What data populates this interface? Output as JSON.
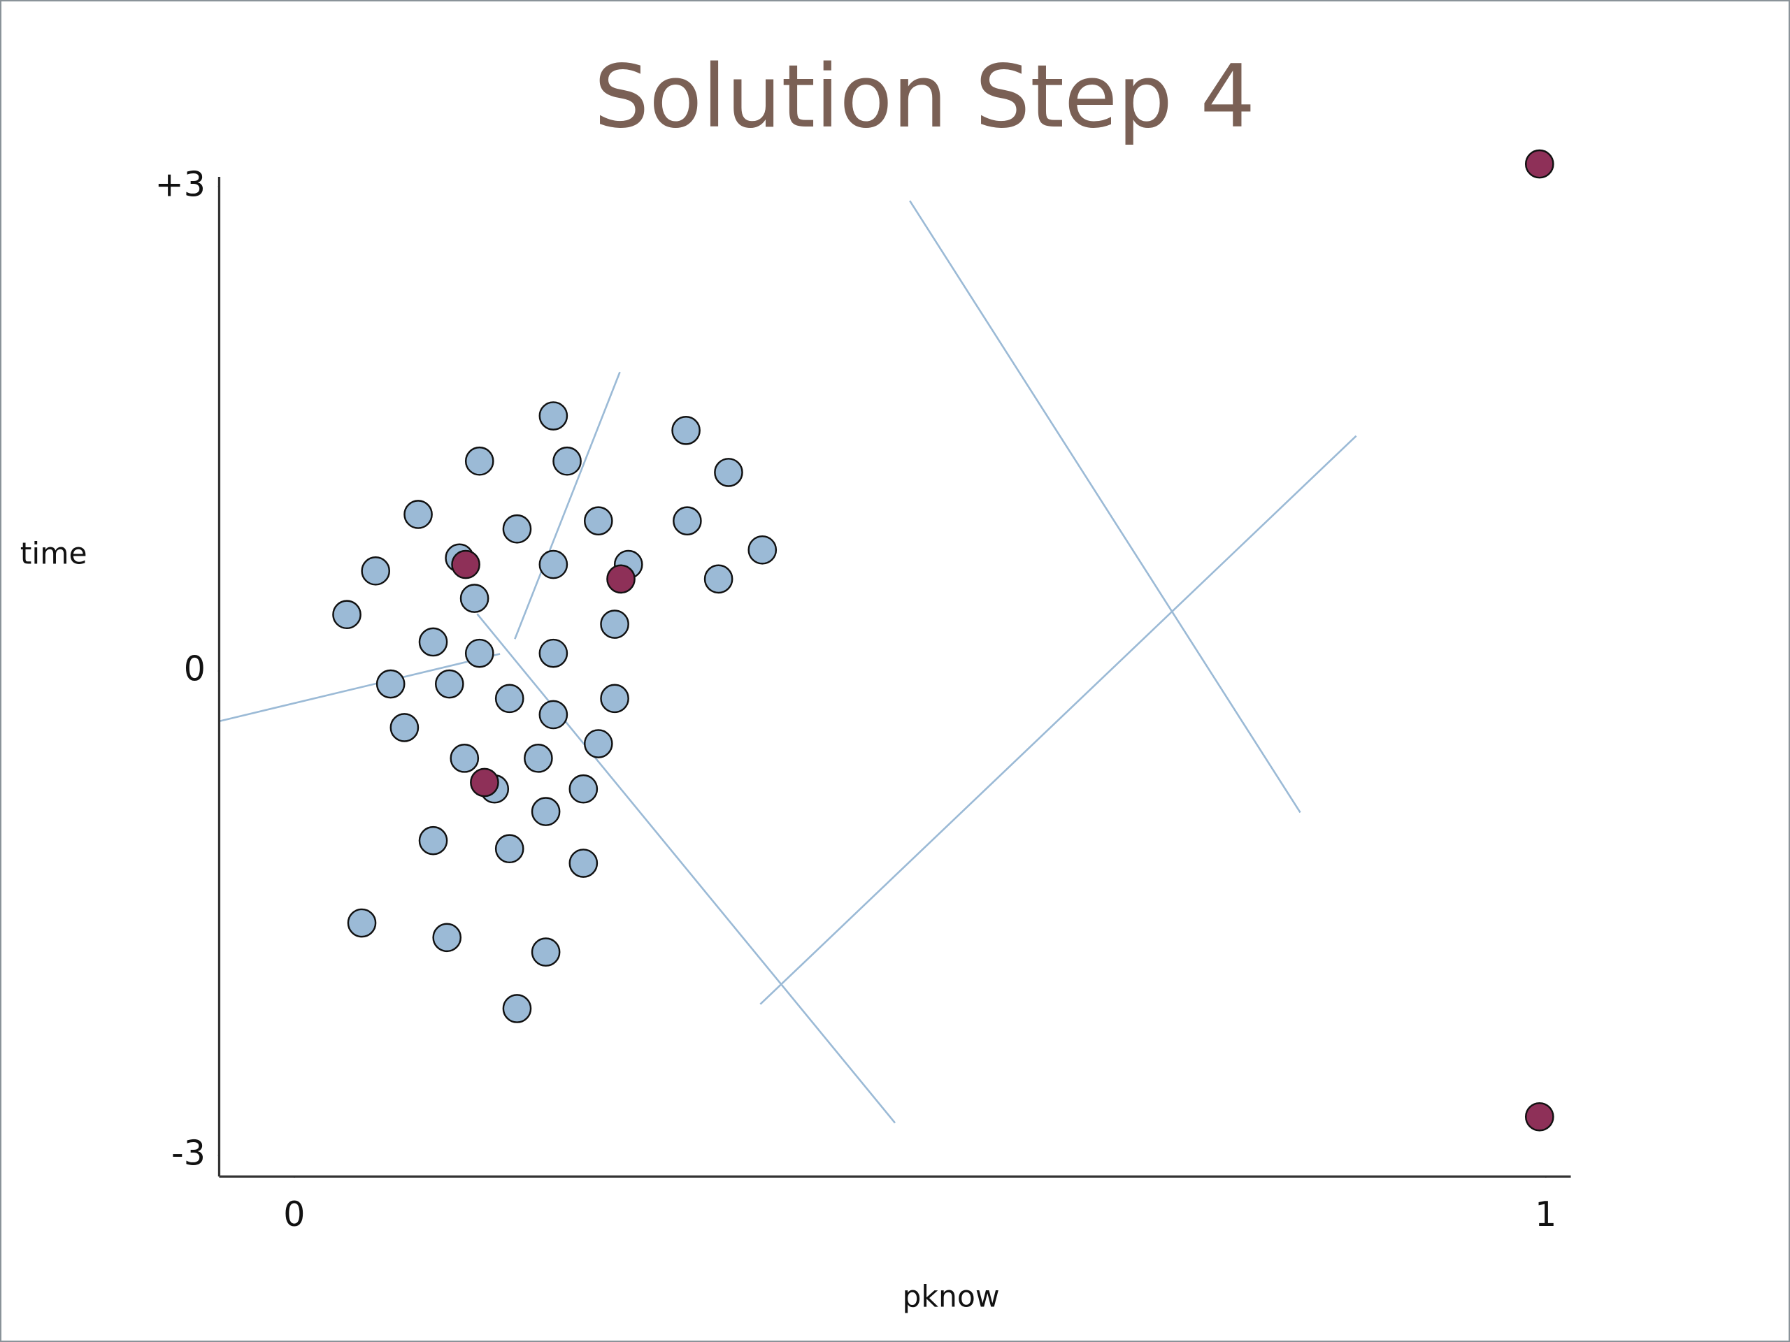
{
  "chart_data": {
    "type": "scatter",
    "title": "Solution Step 4",
    "x_label": "pknow",
    "y_label": "time",
    "xlim": [
      -0.06,
      1.02
    ],
    "ylim": [
      -3.13,
      3.06
    ],
    "xticks": [
      0,
      1
    ],
    "yticks": [
      {
        "value": 3,
        "label": "+3"
      },
      0,
      -3
    ],
    "series": [
      {
        "color": "#9bbad6",
        "x": [
          0.207,
          0.313,
          0.148,
          0.218,
          0.347,
          0.099,
          0.178,
          0.243,
          0.314,
          0.374,
          0.065,
          0.132,
          0.207,
          0.267,
          0.339,
          0.144,
          0.042,
          0.256,
          0.111,
          0.148,
          0.207,
          0.077,
          0.124,
          0.172,
          0.207,
          0.256,
          0.088,
          0.136,
          0.195,
          0.243,
          0.16,
          0.231,
          0.201,
          0.111,
          0.172,
          0.231,
          0.054,
          0.122,
          0.201,
          0.178
        ],
        "values": [
          1.58,
          1.49,
          1.3,
          1.3,
          1.23,
          0.97,
          0.88,
          0.93,
          0.93,
          0.75,
          0.62,
          0.7,
          0.66,
          0.66,
          0.57,
          0.45,
          0.35,
          0.29,
          0.18,
          0.11,
          0.11,
          -0.08,
          -0.08,
          -0.17,
          -0.27,
          -0.17,
          -0.35,
          -0.54,
          -0.54,
          -0.45,
          -0.73,
          -0.73,
          -0.87,
          -1.05,
          -1.1,
          -1.19,
          -1.56,
          -1.65,
          -1.74,
          -2.09
        ]
      },
      {
        "color": "#8e3058",
        "x": [
          0.137,
          0.261,
          0.152,
          0.995,
          0.995
        ],
        "values": [
          0.66,
          0.57,
          -0.69,
          3.14,
          -2.76
        ]
      }
    ]
  }
}
